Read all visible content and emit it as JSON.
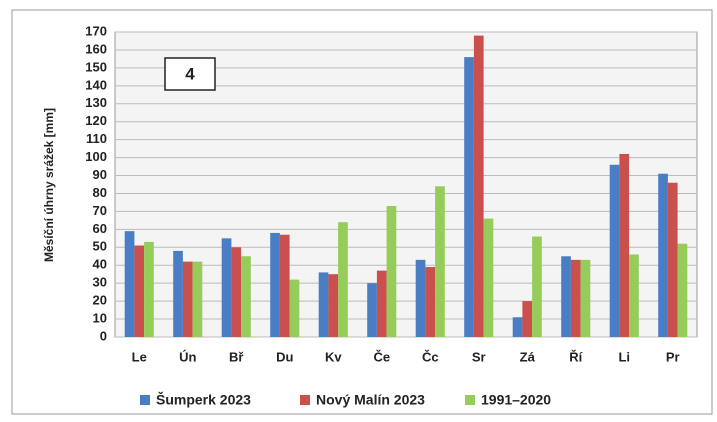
{
  "chart_data": {
    "type": "bar",
    "annotation": "4",
    "y_label": "Měsíční úhrny srážek [mm]",
    "categories": [
      "Le",
      "Ún",
      "Bř",
      "Du",
      "Kv",
      "Če",
      "Čc",
      "Sr",
      "Zá",
      "Ří",
      "Li",
      "Pr"
    ],
    "series": [
      {
        "name": "Šumperk 2023",
        "color": "#4a7ec4",
        "values": [
          59,
          48,
          55,
          58,
          36,
          30,
          43,
          156,
          11,
          45,
          96,
          91
        ]
      },
      {
        "name": "Nový Malín 2023",
        "color": "#c9504c",
        "values": [
          51,
          42,
          50,
          57,
          35,
          37,
          39,
          168,
          20,
          43,
          102,
          86
        ]
      },
      {
        "name": "1991–2020",
        "color": "#96cc5a",
        "values": [
          53,
          42,
          45,
          32,
          64,
          73,
          84,
          66,
          56,
          43,
          46,
          52
        ]
      }
    ],
    "ylim": [
      0,
      170
    ],
    "yticks": [
      0,
      10,
      20,
      30,
      40,
      50,
      60,
      70,
      80,
      90,
      100,
      110,
      120,
      130,
      140,
      150,
      160,
      170
    ],
    "grid": true,
    "legend": "bottom"
  }
}
